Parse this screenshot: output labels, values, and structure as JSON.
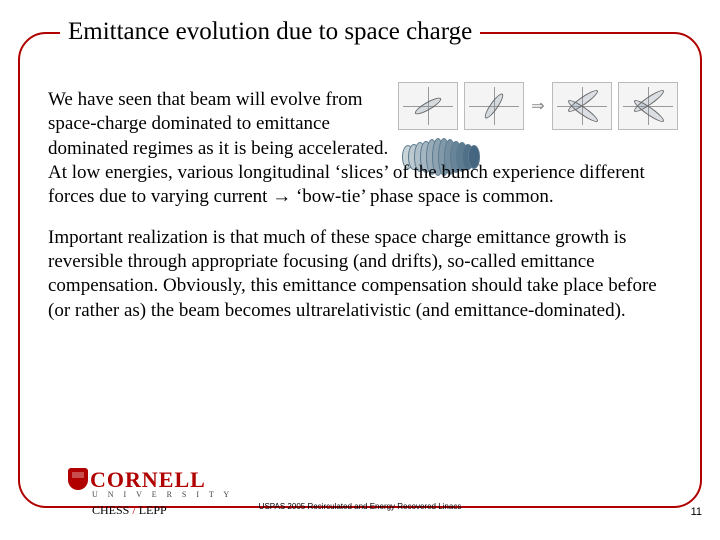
{
  "title": "Emittance evolution due to space charge",
  "para1": "We have seen that beam will evolve from space-charge dominated to emittance dominated regimes as it is being accelerated. At low energies, various longitudinal ‘slices’ of the bunch experience different forces due to varying current → ‘bow-tie’ phase space is common.",
  "para2": "Important realization is that much of these space charge emittance growth is reversible through appropriate focusing (and drifts), so-called emittance compensation. Obviously, this emittance compensation should take place before (or rather as) the beam becomes ultrarelativistic (and emittance-dominated).",
  "logo": {
    "main": "CORNELL",
    "sub": "U N I V E R S I T Y",
    "dept_a": "CHESS",
    "dept_sep": " / ",
    "dept_b": "LEPP"
  },
  "footer": "USPAS 2005 Recirculated and Energy Recovered Linacs",
  "page": "11",
  "diagram": {
    "slice_colors": [
      "#c8d4d8",
      "#bccad0",
      "#b0c0c8",
      "#a4b6c0",
      "#98acb8",
      "#8ca2b0",
      "#8098a8",
      "#748ea0",
      "#688498",
      "#5c7a90",
      "#507088",
      "#446680"
    ]
  },
  "colors": {
    "frame": "#b00000",
    "accent": "#b00000"
  }
}
